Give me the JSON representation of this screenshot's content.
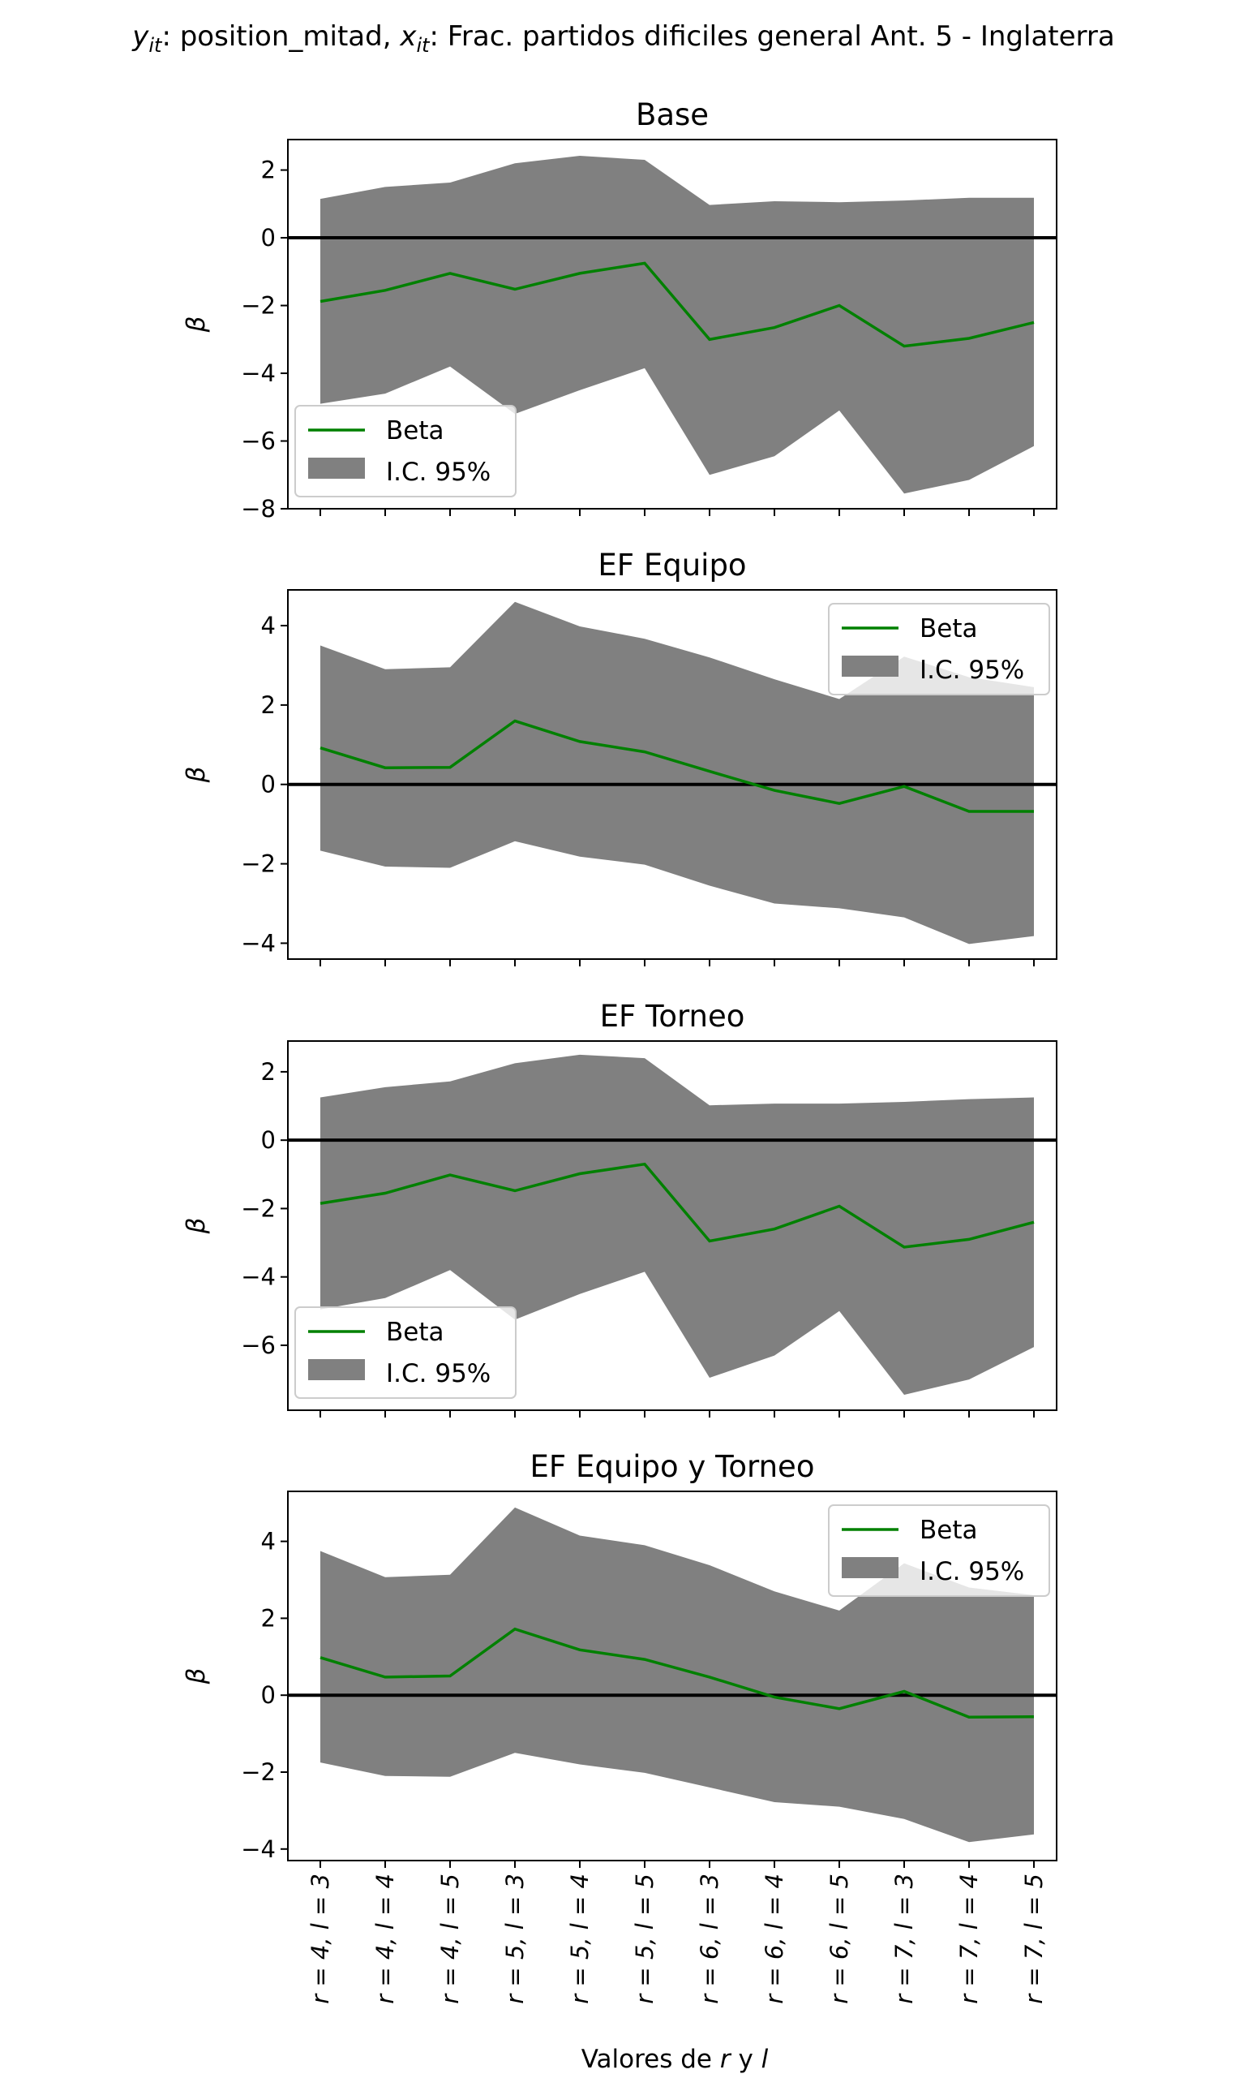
{
  "figure": {
    "suptitle_prefix_y": "y",
    "suptitle_sub_y": "it",
    "suptitle_mid": ": position_mitad, ",
    "suptitle_prefix_x": "x",
    "suptitle_sub_x": "it",
    "suptitle_rest": ": Frac. partidos dificiles general Ant. 5 - Inglaterra",
    "xlabel_pre": "Valores de ",
    "xlabel_r": "r",
    "xlabel_mid": " y ",
    "xlabel_l": "l"
  },
  "colors": {
    "beta_line": "#008000",
    "ci_fill": "#808080",
    "zero_line": "#000000"
  },
  "chart_data": [
    {
      "type": "line",
      "title": "Base",
      "ylabel": "β",
      "categories": [
        "r = 4, l = 3",
        "r = 4, l = 4",
        "r = 4, l = 5",
        "r = 5, l = 3",
        "r = 5, l = 4",
        "r = 5, l = 5",
        "r = 6, l = 3",
        "r = 6, l = 4",
        "r = 6, l = 5",
        "r = 7, l = 3",
        "r = 7, l = 4",
        "r = 7, l = 5"
      ],
      "series": [
        {
          "name": "Beta",
          "values": [
            -1.88,
            -1.55,
            -1.05,
            -1.52,
            -1.05,
            -0.75,
            -3.0,
            -2.65,
            -2.0,
            -3.2,
            -2.97,
            -2.5
          ]
        },
        {
          "name": "I.C. 95%",
          "lower": [
            -4.9,
            -4.6,
            -3.8,
            -5.2,
            -4.5,
            -3.85,
            -7.0,
            -6.45,
            -5.1,
            -7.55,
            -7.15,
            -6.15
          ],
          "upper": [
            1.15,
            1.5,
            1.63,
            2.2,
            2.42,
            2.3,
            0.97,
            1.08,
            1.05,
            1.1,
            1.18,
            1.18
          ]
        }
      ],
      "ylim": [
        -8,
        2.9
      ],
      "yticks": [
        -8,
        -6,
        -4,
        -2,
        0,
        2
      ],
      "legend": "lower-left",
      "grid": false
    },
    {
      "type": "line",
      "title": "EF Equipo",
      "ylabel": "β",
      "categories": [
        "r = 4, l = 3",
        "r = 4, l = 4",
        "r = 4, l = 5",
        "r = 5, l = 3",
        "r = 5, l = 4",
        "r = 5, l = 5",
        "r = 6, l = 3",
        "r = 6, l = 4",
        "r = 6, l = 5",
        "r = 7, l = 3",
        "r = 7, l = 4",
        "r = 7, l = 5"
      ],
      "series": [
        {
          "name": "Beta",
          "values": [
            0.92,
            0.42,
            0.43,
            1.6,
            1.08,
            0.82,
            0.33,
            -0.15,
            -0.48,
            -0.05,
            -0.68,
            -0.68
          ]
        },
        {
          "name": "I.C. 95%",
          "lower": [
            -1.67,
            -2.07,
            -2.1,
            -1.43,
            -1.82,
            -2.02,
            -2.55,
            -3.0,
            -3.12,
            -3.35,
            -4.02,
            -3.82
          ],
          "upper": [
            3.5,
            2.9,
            2.95,
            4.6,
            3.98,
            3.67,
            3.2,
            2.65,
            2.15,
            3.22,
            2.7,
            2.45
          ]
        }
      ],
      "ylim": [
        -4.4,
        4.9
      ],
      "yticks": [
        -4,
        -2,
        0,
        2,
        4
      ],
      "legend": "upper-right",
      "grid": false
    },
    {
      "type": "line",
      "title": "EF Torneo",
      "ylabel": "β",
      "categories": [
        "r = 4, l = 3",
        "r = 4, l = 4",
        "r = 4, l = 5",
        "r = 5, l = 3",
        "r = 5, l = 4",
        "r = 5, l = 5",
        "r = 6, l = 3",
        "r = 6, l = 4",
        "r = 6, l = 5",
        "r = 7, l = 3",
        "r = 7, l = 4",
        "r = 7, l = 5"
      ],
      "series": [
        {
          "name": "Beta",
          "values": [
            -1.85,
            -1.55,
            -1.02,
            -1.48,
            -0.98,
            -0.7,
            -2.95,
            -2.6,
            -1.93,
            -3.13,
            -2.9,
            -2.4
          ]
        },
        {
          "name": "I.C. 95%",
          "lower": [
            -4.95,
            -4.62,
            -3.8,
            -5.25,
            -4.5,
            -3.85,
            -6.95,
            -6.3,
            -5.0,
            -7.45,
            -7.0,
            -6.05
          ],
          "upper": [
            1.25,
            1.55,
            1.72,
            2.25,
            2.5,
            2.4,
            1.02,
            1.07,
            1.07,
            1.12,
            1.2,
            1.25
          ]
        }
      ],
      "ylim": [
        -7.9,
        2.9
      ],
      "yticks": [
        -6,
        -4,
        -2,
        0,
        2
      ],
      "legend": "lower-left",
      "grid": false
    },
    {
      "type": "line",
      "title": "EF Equipo y Torneo",
      "ylabel": "β",
      "categories": [
        "r = 4, l = 3",
        "r = 4, l = 4",
        "r = 4, l = 5",
        "r = 5, l = 3",
        "r = 5, l = 4",
        "r = 5, l = 5",
        "r = 6, l = 3",
        "r = 6, l = 4",
        "r = 6, l = 5",
        "r = 7, l = 3",
        "r = 7, l = 4",
        "r = 7, l = 5"
      ],
      "series": [
        {
          "name": "Beta",
          "values": [
            0.98,
            0.47,
            0.5,
            1.72,
            1.18,
            0.93,
            0.47,
            -0.05,
            -0.35,
            0.1,
            -0.57,
            -0.56
          ]
        },
        {
          "name": "I.C. 95%",
          "lower": [
            -1.75,
            -2.1,
            -2.12,
            -1.5,
            -1.8,
            -2.02,
            -2.4,
            -2.78,
            -2.9,
            -3.22,
            -3.82,
            -3.62
          ],
          "upper": [
            3.75,
            3.07,
            3.13,
            4.88,
            4.15,
            3.9,
            3.38,
            2.7,
            2.2,
            3.43,
            2.8,
            2.6
          ]
        }
      ],
      "ylim": [
        -4.3,
        5.3
      ],
      "yticks": [
        -4,
        -2,
        0,
        2,
        4
      ],
      "legend": "upper-right",
      "grid": false
    }
  ]
}
